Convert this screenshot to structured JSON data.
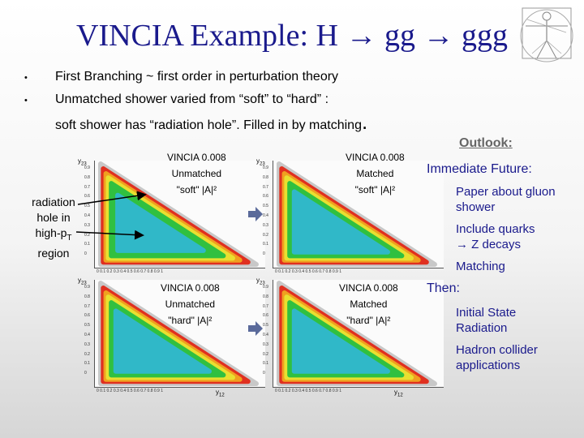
{
  "slide": {
    "title": "VINCIA Example: H → gg → ggg",
    "bullets": [
      "First Branching ~ first order in perturbation theory",
      "Unmatched shower varied from “soft” to “hard” :"
    ],
    "soft_line": "soft shower has “radiation hole”. Filled in by matching",
    "radiation_note": [
      "radiation",
      "hole in",
      "high-pT",
      "region"
    ]
  },
  "plots": [
    {
      "version": "VINCIA 0.008",
      "kind": "Unmatched",
      "amp": "\"soft\" |A|²",
      "ylabel": "y23"
    },
    {
      "version": "VINCIA 0.008",
      "kind": "Matched",
      "amp": "\"soft\" |A|²",
      "ylabel": "y23"
    },
    {
      "version": "VINCIA 0.008",
      "kind": "Unmatched",
      "amp": "\"hard\" |A|²",
      "ylabel": "y23",
      "xlabel": "y12"
    },
    {
      "version": "VINCIA 0.008",
      "kind": "Matched",
      "amp": "\"hard\" |A|²",
      "ylabel": "y23",
      "xlabel": "y12"
    }
  ],
  "axis_ticks": {
    "y": [
      "0.9",
      "0.8",
      "0.7",
      "0.6",
      "0.5",
      "0.4",
      "0.3",
      "0.2",
      "0.1",
      "0"
    ],
    "x": "0  0.1  0.2  0.3  0.4  0.5  0.6  0.7  0.8  0.9  1"
  },
  "outlook": {
    "heading": "Outlook:",
    "immediate": "Immediate Future:",
    "immediate_items": [
      "Paper about gluon shower",
      "Include quarks → Z decays",
      "Matching"
    ],
    "then": "Then:",
    "then_items": [
      "Initial State Radiation",
      "Hadron collider applications"
    ]
  },
  "colors": {
    "title": "#1a1a8c",
    "outlook_heading": "#666666",
    "arrow": "#5a6a9a"
  }
}
